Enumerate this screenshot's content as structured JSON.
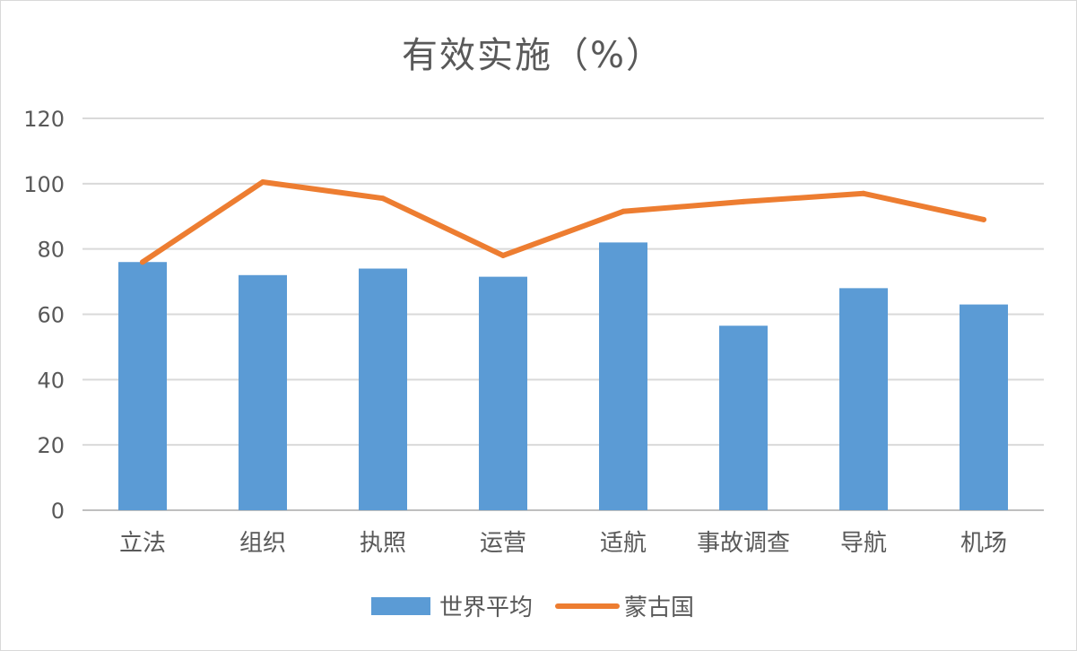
{
  "chart_data": {
    "type": "bar",
    "title": "有效实施（%）",
    "xlabel": "",
    "ylabel": "",
    "ylim": [
      0,
      120
    ],
    "yticks": [
      0,
      20,
      40,
      60,
      80,
      100,
      120
    ],
    "grid": true,
    "legend_position": "bottom",
    "categories": [
      "立法",
      "组织",
      "执照",
      "运营",
      "适航",
      "事故调查",
      "导航",
      "机场"
    ],
    "series": [
      {
        "name": "世界平均",
        "type": "bar",
        "color": "#5b9bd5",
        "values": [
          76,
          72,
          74,
          71.5,
          82,
          56.5,
          68,
          63
        ]
      },
      {
        "name": "蒙古国",
        "type": "line",
        "color": "#ed7d31",
        "values": [
          76,
          100.5,
          95.5,
          78,
          91.5,
          94.5,
          97,
          89
        ]
      }
    ]
  }
}
